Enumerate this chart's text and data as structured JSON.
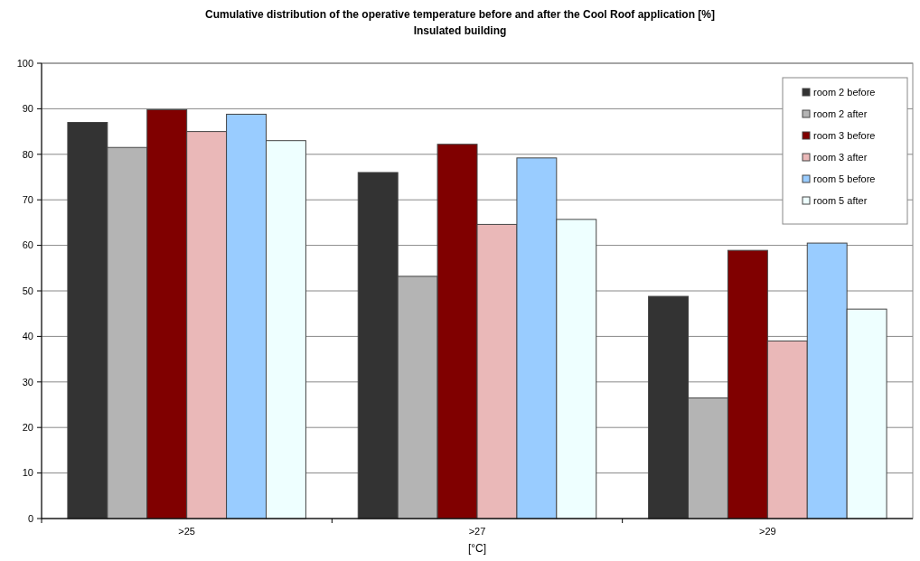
{
  "chart_data": {
    "type": "bar",
    "title": "Cumulative distribution of the operative temperature before and after the Cool Roof application [%]",
    "subtitle": "Insulated building",
    "xlabel": "[°C]",
    "categories": [
      ">25",
      ">27",
      ">29"
    ],
    "series": [
      {
        "name": "room 2 before",
        "color": "#333333",
        "values": [
          87,
          76,
          48.8
        ]
      },
      {
        "name": "room 2 after",
        "color": "#b4b4b4",
        "values": [
          81.5,
          53.2,
          26.5
        ]
      },
      {
        "name": "room 3 before",
        "color": "#800000",
        "values": [
          89.8,
          82.2,
          58.9
        ]
      },
      {
        "name": "room 3 after",
        "color": "#eab8b8",
        "values": [
          85,
          64.6,
          39
        ]
      },
      {
        "name": "room 5 before",
        "color": "#99ccff",
        "values": [
          88.8,
          79.2,
          60.5
        ]
      },
      {
        "name": "room 5 after",
        "color": "#eeffff",
        "values": [
          83,
          65.7,
          46
        ]
      }
    ],
    "ylim": [
      0,
      100
    ],
    "yticks": [
      0,
      10,
      20,
      30,
      40,
      50,
      60,
      70,
      80,
      90,
      100
    ],
    "grid": "y",
    "legend": "top right"
  }
}
